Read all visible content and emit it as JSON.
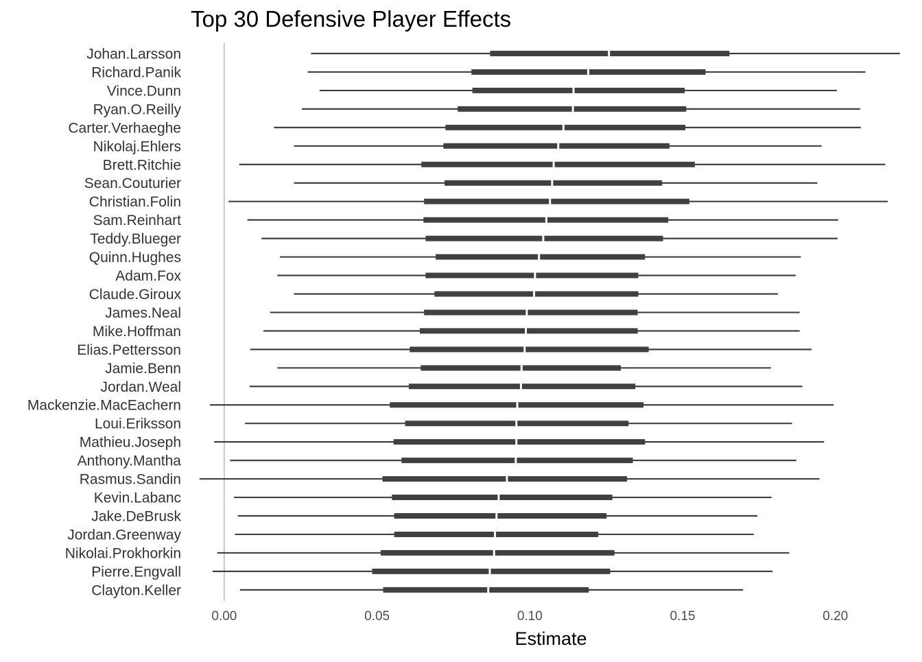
{
  "chart_data": {
    "type": "interval",
    "title": "Top 30 Defensive Player Effects",
    "xlabel": "Estimate",
    "ylabel": "",
    "xlim": [
      -0.0085,
      0.2225
    ],
    "x_ticks": [
      0.0,
      0.05,
      0.1,
      0.15,
      0.2
    ],
    "x_tick_labels": [
      "0.00",
      "0.05",
      "0.10",
      "0.15",
      "0.20"
    ],
    "reference_line": 0.0,
    "grid": false,
    "legend": "none",
    "colors": {
      "interval": "#404040",
      "reference": "#cccccc",
      "median_gap": "#ffffff"
    },
    "players": [
      {
        "name": "Johan.Larsson",
        "low": 0.0284,
        "q1": 0.087,
        "median": 0.1259,
        "q3": 0.1653,
        "high": 0.2211
      },
      {
        "name": "Richard.Panik",
        "low": 0.0273,
        "q1": 0.0809,
        "median": 0.1191,
        "q3": 0.1575,
        "high": 0.2098
      },
      {
        "name": "Vince.Dunn",
        "low": 0.0312,
        "q1": 0.0812,
        "median": 0.1143,
        "q3": 0.1507,
        "high": 0.2005
      },
      {
        "name": "Ryan.O.Reilly",
        "low": 0.0254,
        "q1": 0.0764,
        "median": 0.1141,
        "q3": 0.1512,
        "high": 0.2081
      },
      {
        "name": "Carter.Verhaeghe",
        "low": 0.0163,
        "q1": 0.0724,
        "median": 0.111,
        "q3": 0.1509,
        "high": 0.2083
      },
      {
        "name": "Nikolaj.Ehlers",
        "low": 0.0228,
        "q1": 0.0717,
        "median": 0.1093,
        "q3": 0.1457,
        "high": 0.1955
      },
      {
        "name": "Brett.Ritchie",
        "low": 0.0049,
        "q1": 0.0645,
        "median": 0.1078,
        "q3": 0.154,
        "high": 0.2163
      },
      {
        "name": "Sean.Couturier",
        "low": 0.0228,
        "q1": 0.0721,
        "median": 0.1073,
        "q3": 0.1433,
        "high": 0.1941
      },
      {
        "name": "Christian.Folin",
        "low": 0.0014,
        "q1": 0.0654,
        "median": 0.1066,
        "q3": 0.1522,
        "high": 0.2171
      },
      {
        "name": "Sam.Reinhart",
        "low": 0.0076,
        "q1": 0.0652,
        "median": 0.1054,
        "q3": 0.1453,
        "high": 0.2009
      },
      {
        "name": "Teddy.Blueger",
        "low": 0.0122,
        "q1": 0.0659,
        "median": 0.1044,
        "q3": 0.1436,
        "high": 0.2007
      },
      {
        "name": "Quinn.Hughes",
        "low": 0.0182,
        "q1": 0.0692,
        "median": 0.103,
        "q3": 0.1377,
        "high": 0.1887
      },
      {
        "name": "Adam.Fox",
        "low": 0.0174,
        "q1": 0.0659,
        "median": 0.1017,
        "q3": 0.1355,
        "high": 0.187
      },
      {
        "name": "Claude.Giroux",
        "low": 0.0228,
        "q1": 0.0688,
        "median": 0.1014,
        "q3": 0.1355,
        "high": 0.1812
      },
      {
        "name": "James.Neal",
        "low": 0.015,
        "q1": 0.0654,
        "median": 0.099,
        "q3": 0.1353,
        "high": 0.1883
      },
      {
        "name": "Mike.Hoffman",
        "low": 0.0128,
        "q1": 0.064,
        "median": 0.0987,
        "q3": 0.1353,
        "high": 0.1883
      },
      {
        "name": "Elias.Pettersson",
        "low": 0.0085,
        "q1": 0.0607,
        "median": 0.0983,
        "q3": 0.1389,
        "high": 0.1922
      },
      {
        "name": "Jamie.Benn",
        "low": 0.0174,
        "q1": 0.0643,
        "median": 0.0973,
        "q3": 0.1298,
        "high": 0.1789
      },
      {
        "name": "Jordan.Weal",
        "low": 0.0083,
        "q1": 0.0604,
        "median": 0.0971,
        "q3": 0.1345,
        "high": 0.1892
      },
      {
        "name": "Mackenzie.MacEachern",
        "low": -0.0047,
        "q1": 0.0542,
        "median": 0.0959,
        "q3": 0.1372,
        "high": 0.1994
      },
      {
        "name": "Loui.Eriksson",
        "low": 0.0068,
        "q1": 0.0592,
        "median": 0.0956,
        "q3": 0.1323,
        "high": 0.1858
      },
      {
        "name": "Mathieu.Joseph",
        "low": -0.0033,
        "q1": 0.0554,
        "median": 0.0956,
        "q3": 0.1377,
        "high": 0.1963
      },
      {
        "name": "Anthony.Mantha",
        "low": 0.0019,
        "q1": 0.058,
        "median": 0.0954,
        "q3": 0.1337,
        "high": 0.1872
      },
      {
        "name": "Rasmus.Sandin",
        "low": -0.0081,
        "q1": 0.0518,
        "median": 0.0925,
        "q3": 0.1318,
        "high": 0.1948
      },
      {
        "name": "Kevin.Labanc",
        "low": 0.0032,
        "q1": 0.0549,
        "median": 0.0898,
        "q3": 0.127,
        "high": 0.1791
      },
      {
        "name": "Jake.DeBrusk",
        "low": 0.0044,
        "q1": 0.0556,
        "median": 0.0891,
        "q3": 0.1251,
        "high": 0.1745
      },
      {
        "name": "Jordan.Greenway",
        "low": 0.0035,
        "q1": 0.0556,
        "median": 0.0886,
        "q3": 0.1224,
        "high": 0.1733
      },
      {
        "name": "Nikolai.Prokhorkin",
        "low": -0.0023,
        "q1": 0.0512,
        "median": 0.0883,
        "q3": 0.1277,
        "high": 0.1849
      },
      {
        "name": "Pierre.Engvall",
        "low": -0.0038,
        "q1": 0.0484,
        "median": 0.0869,
        "q3": 0.1263,
        "high": 0.1794
      },
      {
        "name": "Clayton.Keller",
        "low": 0.0052,
        "q1": 0.052,
        "median": 0.0864,
        "q3": 0.1193,
        "high": 0.1698
      }
    ]
  }
}
